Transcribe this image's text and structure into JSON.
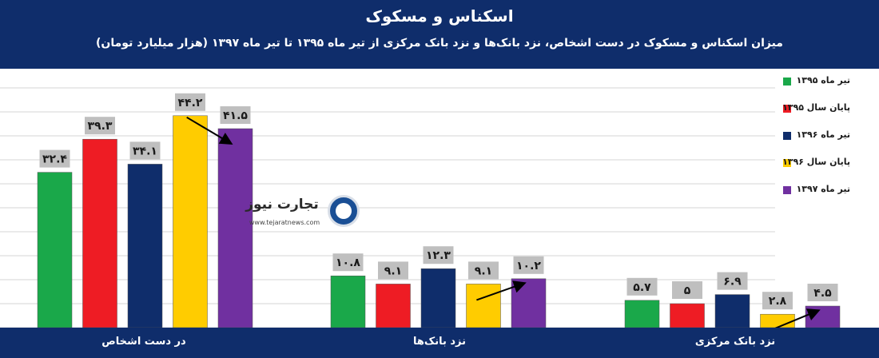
{
  "header": {
    "title": "اسکناس و مسکوک",
    "subtitle": "میزان اسکناس و مسکوک در دست اشخاص، نزد بانک‌ها و نزد بانک مرکزی از تیر ماه ۱۳۹۵ تا تیر ماه ۱۳۹۷ (هزار میلیارد تومان)"
  },
  "logo": {
    "name": "تجارت نیوز",
    "url": "www.tejaratnews.com"
  },
  "colors": {
    "header_bg": "#0f2d6b",
    "series": [
      "#1aa84a",
      "#ee1c24",
      "#0f2d6b",
      "#ffcc00",
      "#7030a0"
    ]
  },
  "chart_data": {
    "type": "bar",
    "title": "اسکناس و مسکوک",
    "subtitle": "میزان اسکناس و مسکوک در دست اشخاص، نزد بانک‌ها و نزد بانک مرکزی از تیر ماه ۱۳۹۵ تا تیر ماه ۱۳۹۷ (هزار میلیارد تومان)",
    "categories": [
      "در دست اشخاص",
      "نزد بانک‌ها",
      "نزد بانک مرکزی"
    ],
    "series": [
      {
        "name": "تیر ماه ۱۳۹۵",
        "values": [
          32.4,
          10.8,
          5.7
        ],
        "labels": [
          "۳۲.۴",
          "۱۰.۸",
          "۵.۷"
        ]
      },
      {
        "name": "پایان سال ۱۳۹۵",
        "values": [
          39.3,
          9.1,
          5
        ],
        "labels": [
          "۳۹.۳",
          "۹.۱",
          "۵"
        ]
      },
      {
        "name": "تیر ماه ۱۳۹۶",
        "values": [
          34.1,
          12.3,
          6.9
        ],
        "labels": [
          "۳۴.۱",
          "۱۲.۳",
          "۶.۹"
        ]
      },
      {
        "name": "پایان سال ۱۳۹۶",
        "values": [
          44.2,
          9.1,
          2.8
        ],
        "labels": [
          "۴۴.۲",
          "۹.۱",
          "۲.۸"
        ]
      },
      {
        "name": "تیر ماه ۱۳۹۷",
        "values": [
          41.5,
          10.2,
          4.5
        ],
        "labels": [
          "۴۱.۵",
          "۱۰.۲",
          "۴.۵"
        ]
      }
    ],
    "ylim": [
      0,
      50
    ],
    "grid": true,
    "legend": "right",
    "annotations": "arrows pointing from the end-of-1396 value to the Tir-1397 value in each group"
  }
}
